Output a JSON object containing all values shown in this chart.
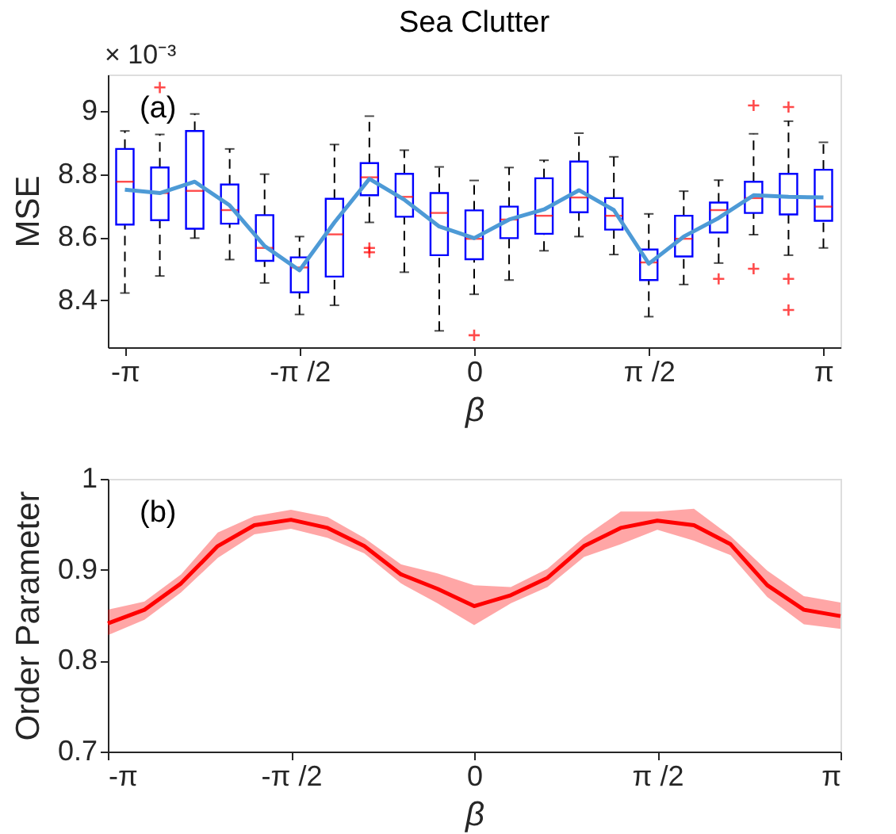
{
  "chart_data": [
    {
      "type": "box",
      "title": "Sea Clutter",
      "ylabel": "MSE",
      "xlabel": "β",
      "annotations": [
        "× 10⁻³",
        "(a)"
      ],
      "x": [
        -3.1416,
        -2.8274,
        -2.5133,
        -2.1991,
        -1.885,
        -1.5708,
        -1.2566,
        -0.9425,
        -0.6283,
        -0.3142,
        0,
        0.3142,
        0.6283,
        0.9425,
        1.2566,
        1.5708,
        1.885,
        2.1991,
        2.5133,
        2.8274,
        3.1416
      ],
      "xlim": [
        -3.295,
        3.295
      ],
      "xticks": [
        {
          "value": -3.1416,
          "label": "-π"
        },
        {
          "value": -1.5708,
          "label": "-π /2"
        },
        0,
        {
          "value": 1.5708,
          "label": "π /2"
        },
        {
          "value": 3.1416,
          "label": "π"
        }
      ],
      "ylim": [
        8.251,
        9.116
      ],
      "yticks": [
        8.4,
        8.6,
        8.8,
        9
      ],
      "series": [
        {
          "type": "box",
          "color": "#0000ff",
          "boxes": [
            {
              "low": 8.423,
              "q1": 8.64,
              "median": 8.776,
              "q3": 8.88,
              "high": 8.937
            },
            {
              "low": 8.477,
              "q1": 8.654,
              "median": 8.74,
              "q3": 8.821,
              "high": 8.926,
              "outliers": [
                9.075
              ]
            },
            {
              "low": 8.597,
              "q1": 8.627,
              "median": 8.747,
              "q3": 8.937,
              "high": 8.991
            },
            {
              "low": 8.529,
              "q1": 8.643,
              "median": 8.686,
              "q3": 8.767,
              "high": 8.88
            },
            {
              "low": 8.455,
              "q1": 8.525,
              "median": 8.566,
              "q3": 8.67,
              "high": 8.8
            },
            {
              "low": 8.355,
              "q1": 8.425,
              "median": 8.504,
              "q3": 8.536,
              "high": 8.602
            },
            {
              "low": 8.384,
              "q1": 8.475,
              "median": 8.609,
              "q3": 8.722,
              "high": 8.894
            },
            {
              "low": 8.647,
              "q1": 8.733,
              "median": 8.79,
              "q3": 8.835,
              "high": 8.984,
              "outliers": [
                8.566,
                8.552
              ]
            },
            {
              "low": 8.489,
              "q1": 8.665,
              "median": 8.728,
              "q3": 8.801,
              "high": 8.876
            },
            {
              "low": 8.303,
              "q1": 8.543,
              "median": 8.677,
              "q3": 8.74,
              "high": 8.823
            },
            {
              "low": 8.419,
              "q1": 8.53,
              "median": 8.595,
              "q3": 8.685,
              "high": 8.78,
              "outliers": [
                8.289
              ]
            },
            {
              "low": 8.464,
              "q1": 8.597,
              "median": 8.656,
              "q3": 8.697,
              "high": 8.821
            },
            {
              "low": 8.557,
              "q1": 8.611,
              "median": 8.668,
              "q3": 8.787,
              "high": 8.844
            },
            {
              "low": 8.602,
              "q1": 8.679,
              "median": 8.726,
              "q3": 8.84,
              "high": 8.93
            },
            {
              "low": 8.545,
              "q1": 8.624,
              "median": 8.668,
              "q3": 8.724,
              "high": 8.855
            },
            {
              "low": 8.348,
              "q1": 8.464,
              "median": 8.52,
              "q3": 8.561,
              "high": 8.674
            },
            {
              "low": 8.45,
              "q1": 8.539,
              "median": 8.595,
              "q3": 8.668,
              "high": 8.746
            },
            {
              "low": 8.518,
              "q1": 8.615,
              "median": 8.686,
              "q3": 8.71,
              "high": 8.781,
              "outliers": [
                8.468
              ]
            },
            {
              "low": 8.608,
              "q1": 8.677,
              "median": 8.724,
              "q3": 8.776,
              "high": 8.928,
              "outliers": [
                9.018,
                8.5
              ]
            },
            {
              "low": 8.543,
              "q1": 8.672,
              "median": 8.728,
              "q3": 8.801,
              "high": 8.968,
              "outliers": [
                9.013,
                8.468,
                8.369
              ]
            },
            {
              "low": 8.566,
              "q1": 8.652,
              "median": 8.697,
              "q3": 8.814,
              "high": 8.901
            }
          ]
        },
        {
          "type": "line",
          "color": "#4d9ad6",
          "values": [
            8.751,
            8.74,
            8.776,
            8.701,
            8.572,
            8.495,
            8.647,
            8.785,
            8.719,
            8.634,
            8.597,
            8.656,
            8.688,
            8.749,
            8.686,
            8.516,
            8.602,
            8.661,
            8.733,
            8.728,
            8.726
          ]
        }
      ]
    },
    {
      "type": "line",
      "ylabel": "Order Parameter",
      "xlabel": "β",
      "annotations": [
        "(b)"
      ],
      "x": [
        -3.1416,
        -2.8274,
        -2.5133,
        -2.1991,
        -1.885,
        -1.5708,
        -1.2566,
        -0.9425,
        -0.6283,
        -0.3142,
        0,
        0.3142,
        0.6283,
        0.9425,
        1.2566,
        1.5708,
        1.885,
        2.1991,
        2.5133,
        2.8274,
        3.1416
      ],
      "xlim": [
        -3.1416,
        3.1416
      ],
      "xticks": [
        {
          "value": -3.1416,
          "label": "-π"
        },
        {
          "value": -1.5708,
          "label": "-π /2"
        },
        0,
        {
          "value": 1.5708,
          "label": "π /2"
        },
        {
          "value": 3.1416,
          "label": "π"
        }
      ],
      "ylim": [
        0.7,
        1
      ],
      "yticks": [
        0.7,
        0.8,
        0.9,
        1
      ],
      "series": [
        {
          "color": "#ff0000",
          "values": [
            0.841,
            0.856,
            0.885,
            0.926,
            0.949,
            0.955,
            0.946,
            0.926,
            0.895,
            0.879,
            0.86,
            0.872,
            0.891,
            0.926,
            0.946,
            0.954,
            0.949,
            0.928,
            0.883,
            0.856,
            0.849
          ],
          "upper": [
            0.856,
            0.865,
            0.895,
            0.941,
            0.959,
            0.966,
            0.958,
            0.935,
            0.906,
            0.896,
            0.883,
            0.881,
            0.901,
            0.936,
            0.964,
            0.964,
            0.967,
            0.937,
            0.899,
            0.871,
            0.864
          ],
          "lower": [
            0.828,
            0.845,
            0.875,
            0.913,
            0.939,
            0.945,
            0.935,
            0.918,
            0.885,
            0.863,
            0.839,
            0.863,
            0.881,
            0.914,
            0.928,
            0.944,
            0.932,
            0.916,
            0.87,
            0.84,
            0.835
          ]
        }
      ]
    }
  ]
}
